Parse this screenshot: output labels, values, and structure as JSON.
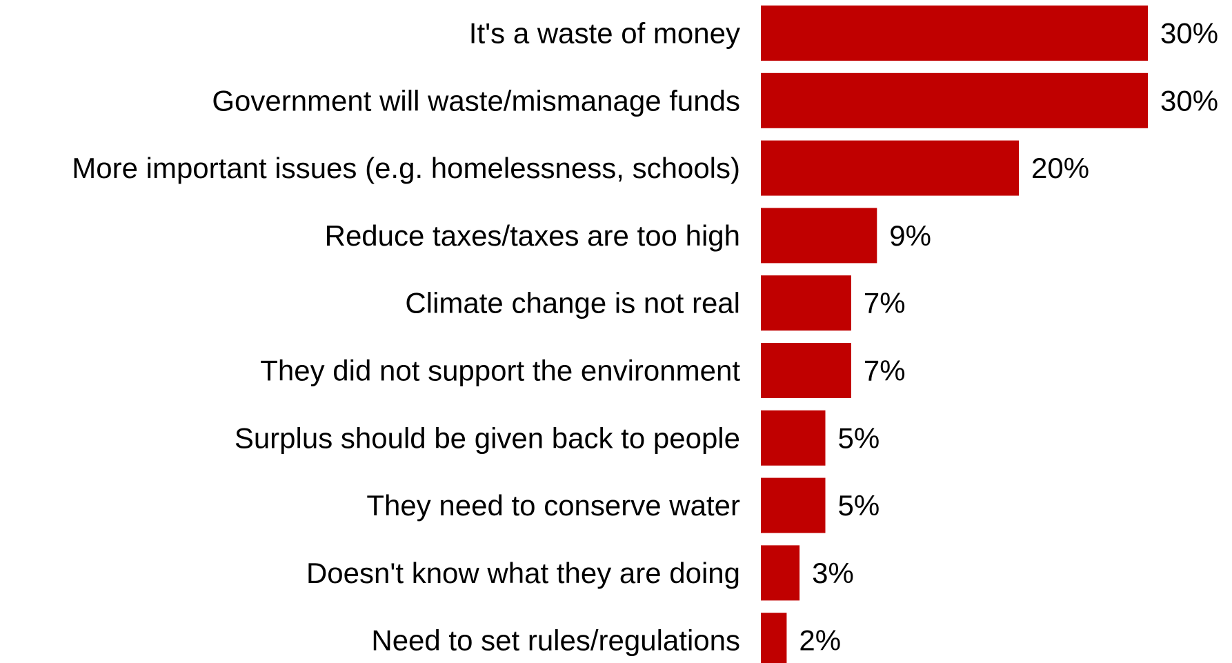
{
  "chart_data": {
    "type": "bar",
    "orientation": "horizontal",
    "categories": [
      "It's a waste of money",
      "Government will waste/mismanage funds",
      "More important issues (e.g. homelessness, schools)",
      "Reduce taxes/taxes are too high",
      "Climate change is not real",
      "They did not support the environment",
      "Surplus should be given back to people",
      "They need to conserve water",
      "Doesn't know what they are doing",
      "Need to set rules/regulations"
    ],
    "values": [
      30,
      30,
      20,
      9,
      7,
      7,
      5,
      5,
      3,
      2
    ],
    "value_labels": [
      "30%",
      "30%",
      "20%",
      "9%",
      "7%",
      "7%",
      "5%",
      "5%",
      "3%",
      "2%"
    ],
    "unit": "%",
    "bar_color": "#C00000",
    "title": "",
    "xlabel": "",
    "ylabel": "",
    "xlim": [
      0,
      30
    ],
    "grid": false,
    "legend": "none"
  }
}
